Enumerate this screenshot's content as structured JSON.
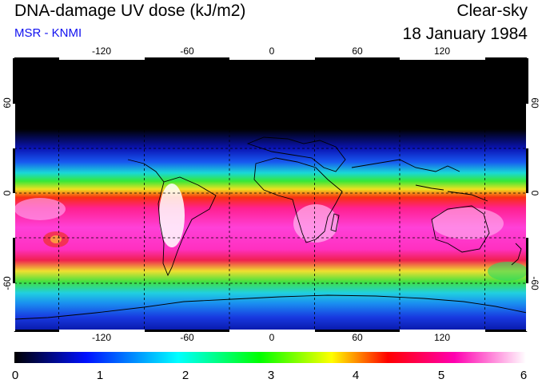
{
  "header": {
    "title": "DNA-damage UV dose (kJ/m2)",
    "credit": "MSR - KNMI",
    "condition": "Clear-sky",
    "date": "18 January 1984"
  },
  "map": {
    "lon_ticks": [
      "-120",
      "-60",
      "0",
      "60",
      "120"
    ],
    "lat_ticks": [
      "60",
      "0",
      "-60"
    ]
  },
  "colorbar": {
    "tick_labels": [
      "0",
      "1",
      "2",
      "3",
      "4",
      "5",
      "6"
    ],
    "colors": [
      "#000000",
      "#0010ff",
      "#00ffff",
      "#00ff00",
      "#ffff00",
      "#ff0000",
      "#ff00b0",
      "#ffffff"
    ]
  }
}
